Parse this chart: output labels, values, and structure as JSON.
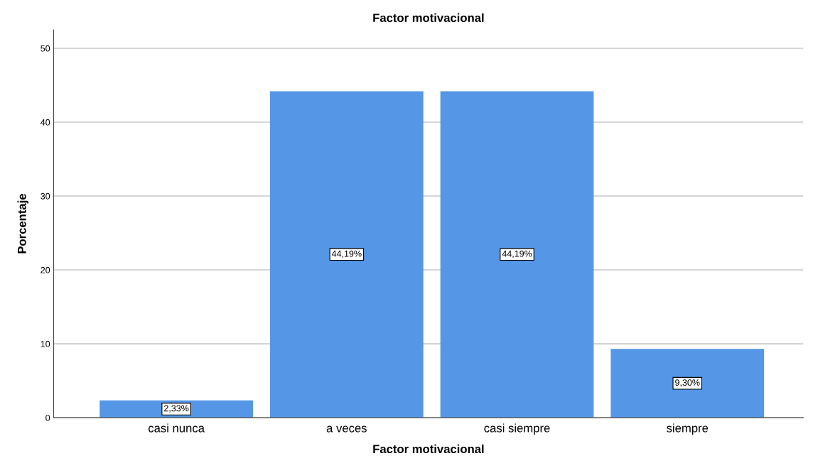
{
  "chart_data": {
    "type": "bar",
    "title": "Factor motivacional",
    "xlabel": "Factor motivacional",
    "ylabel": "Porcentaje",
    "categories": [
      "casi nunca",
      "a veces",
      "casi siempre",
      "siempre"
    ],
    "values": [
      2.33,
      44.19,
      44.19,
      9.3
    ],
    "value_labels": [
      "2,33%",
      "44,19%",
      "44,19%",
      "9,30%"
    ],
    "color": "#5596e6",
    "ylim": [
      0,
      52.5
    ],
    "yticks": [
      0,
      10,
      20,
      30,
      40,
      50
    ],
    "grid": "y",
    "legend": false
  }
}
